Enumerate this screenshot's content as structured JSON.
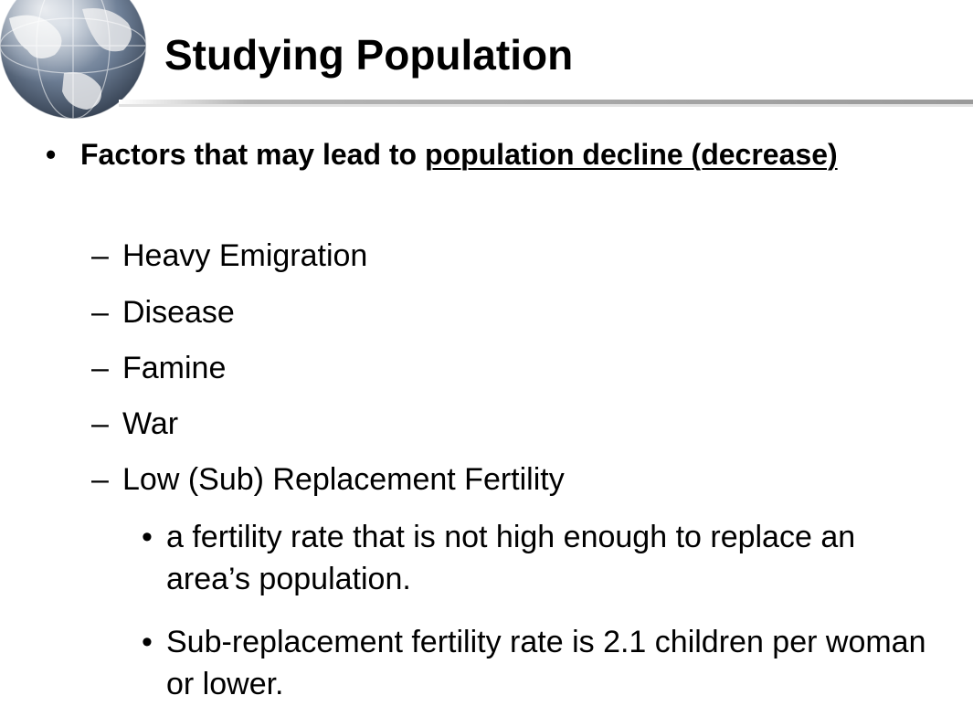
{
  "slide": {
    "title": "Studying Population",
    "main_bullet": {
      "marker": "•",
      "prefix": "Factors that may lead to ",
      "underlined": "population decline (decrease)"
    },
    "sub_items": [
      {
        "marker": "–",
        "label": "Heavy Emigration"
      },
      {
        "marker": "–",
        "label": "Disease"
      },
      {
        "marker": "–",
        "label": "Famine"
      },
      {
        "marker": "–",
        "label": "War"
      },
      {
        "marker": "–",
        "label": "Low (Sub) Replacement Fertility"
      }
    ],
    "detail_items": [
      {
        "marker": "•",
        "text": "a fertility rate that is not high enough to replace an area’s population."
      },
      {
        "marker": "•",
        "text": "Sub-replacement fertility rate is 2.1 children per woman or lower."
      }
    ]
  },
  "colors": {
    "globe_ocean": "#6e7f96",
    "globe_land": "#e6e8ea",
    "divider": "#9a9a9a",
    "text": "#000000"
  },
  "icons": {
    "globe": "globe-icon"
  }
}
